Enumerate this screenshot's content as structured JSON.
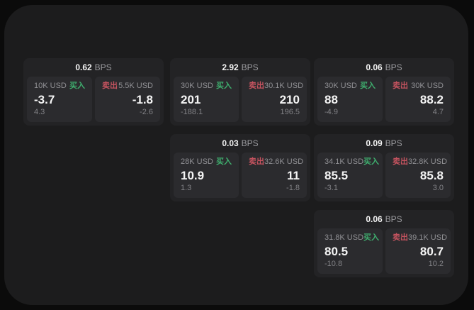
{
  "colors": {
    "page_bg": "#0b0b0b",
    "panel_bg": "#1c1c1d",
    "card_bg": "#232325",
    "tile_bg": "#2b2b2e",
    "text_primary": "#f5f5f5",
    "text_secondary": "#909094",
    "buy_green": "#3fae6e",
    "sell_red": "#c4535f"
  },
  "labels": {
    "bps_suffix": "BPS",
    "buy": "买入",
    "sell": "卖出"
  },
  "cards": [
    {
      "row": 1,
      "col": 1,
      "bps": "0.62",
      "buy": {
        "amount": "10K USD",
        "price": "-3.7",
        "delta": "4.3"
      },
      "sell": {
        "amount": "5.5K USD",
        "price": "-1.8",
        "delta": "-2.6"
      }
    },
    {
      "row": 1,
      "col": 2,
      "bps": "2.92",
      "buy": {
        "amount": "30K USD",
        "price": "201",
        "delta": "-188.1"
      },
      "sell": {
        "amount": "30.1K USD",
        "price": "210",
        "delta": "196.5"
      }
    },
    {
      "row": 1,
      "col": 3,
      "bps": "0.06",
      "buy": {
        "amount": "30K USD",
        "price": "88",
        "delta": "-4.9"
      },
      "sell": {
        "amount": "30K USD",
        "price": "88.2",
        "delta": "4.7"
      }
    },
    {
      "row": 2,
      "col": 2,
      "bps": "0.03",
      "buy": {
        "amount": "28K USD",
        "price": "10.9",
        "delta": "1.3"
      },
      "sell": {
        "amount": "32.6K USD",
        "price": "11",
        "delta": "-1.8"
      }
    },
    {
      "row": 2,
      "col": 3,
      "bps": "0.09",
      "buy": {
        "amount": "34.1K USD",
        "price": "85.5",
        "delta": "-3.1"
      },
      "sell": {
        "amount": "32.8K USD",
        "price": "85.8",
        "delta": "3.0"
      }
    },
    {
      "row": 3,
      "col": 3,
      "bps": "0.06",
      "buy": {
        "amount": "31.8K USD",
        "price": "80.5",
        "delta": "-10.8"
      },
      "sell": {
        "amount": "39.1K USD",
        "price": "80.7",
        "delta": "10.2"
      }
    }
  ]
}
